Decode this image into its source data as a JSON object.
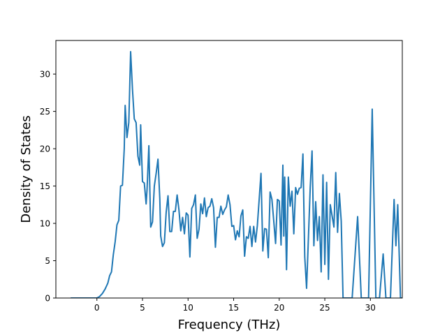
{
  "chart_data": {
    "type": "line",
    "xlabel": "Frequency (THz)",
    "ylabel": "Density of States",
    "xlim": [
      -4.5,
      33.5
    ],
    "ylim": [
      0,
      34.5
    ],
    "x_ticks": [
      0,
      5,
      10,
      15,
      20,
      25,
      30
    ],
    "y_ticks": [
      0,
      5,
      10,
      15,
      20,
      25,
      30
    ],
    "grid": false,
    "legend": "none",
    "series": [
      {
        "color": "#1f77b4",
        "points": [
          [
            -2.8,
            0
          ],
          [
            -1.0,
            0
          ],
          [
            0.0,
            0
          ],
          [
            0.3,
            0.2
          ],
          [
            0.6,
            0.6
          ],
          [
            0.9,
            1.2
          ],
          [
            1.2,
            2.0
          ],
          [
            1.4,
            3.0
          ],
          [
            1.6,
            3.5
          ],
          [
            1.8,
            5.8
          ],
          [
            2.0,
            7.5
          ],
          [
            2.2,
            9.8
          ],
          [
            2.4,
            10.4
          ],
          [
            2.6,
            15.0
          ],
          [
            2.8,
            15.1
          ],
          [
            3.0,
            20.0
          ],
          [
            3.1,
            25.8
          ],
          [
            3.3,
            21.5
          ],
          [
            3.5,
            23.5
          ],
          [
            3.7,
            33.0
          ],
          [
            3.9,
            28.0
          ],
          [
            4.1,
            24.0
          ],
          [
            4.3,
            23.5
          ],
          [
            4.5,
            19.0
          ],
          [
            4.7,
            17.8
          ],
          [
            4.8,
            23.2
          ],
          [
            5.0,
            15.6
          ],
          [
            5.2,
            15.4
          ],
          [
            5.4,
            12.6
          ],
          [
            5.5,
            14.5
          ],
          [
            5.7,
            20.4
          ],
          [
            5.9,
            9.5
          ],
          [
            6.1,
            10.2
          ],
          [
            6.3,
            15.0
          ],
          [
            6.5,
            16.7
          ],
          [
            6.7,
            18.6
          ],
          [
            6.9,
            13.3
          ],
          [
            7.0,
            8.3
          ],
          [
            7.2,
            6.9
          ],
          [
            7.4,
            7.4
          ],
          [
            7.6,
            11.5
          ],
          [
            7.8,
            13.7
          ],
          [
            8.0,
            8.9
          ],
          [
            8.2,
            8.9
          ],
          [
            8.4,
            11.6
          ],
          [
            8.6,
            11.6
          ],
          [
            8.8,
            13.8
          ],
          [
            9.0,
            11.8
          ],
          [
            9.2,
            9.0
          ],
          [
            9.4,
            10.8
          ],
          [
            9.6,
            8.6
          ],
          [
            9.8,
            11.4
          ],
          [
            10.0,
            11.1
          ],
          [
            10.2,
            5.5
          ],
          [
            10.4,
            12.0
          ],
          [
            10.6,
            12.5
          ],
          [
            10.8,
            13.8
          ],
          [
            11.0,
            8.0
          ],
          [
            11.2,
            9.2
          ],
          [
            11.4,
            12.6
          ],
          [
            11.6,
            11.3
          ],
          [
            11.8,
            13.4
          ],
          [
            12.0,
            10.9
          ],
          [
            12.2,
            12.1
          ],
          [
            12.4,
            12.3
          ],
          [
            12.6,
            13.3
          ],
          [
            12.8,
            12.1
          ],
          [
            13.0,
            6.8
          ],
          [
            13.2,
            10.8
          ],
          [
            13.4,
            10.8
          ],
          [
            13.6,
            12.3
          ],
          [
            13.8,
            11.2
          ],
          [
            14.0,
            11.8
          ],
          [
            14.2,
            12.2
          ],
          [
            14.4,
            13.8
          ],
          [
            14.6,
            12.5
          ],
          [
            14.8,
            9.6
          ],
          [
            15.0,
            9.7
          ],
          [
            15.2,
            7.8
          ],
          [
            15.4,
            9.0
          ],
          [
            15.6,
            8.2
          ],
          [
            15.8,
            11.0
          ],
          [
            16.0,
            11.8
          ],
          [
            16.2,
            5.6
          ],
          [
            16.4,
            8.2
          ],
          [
            16.6,
            8.0
          ],
          [
            16.8,
            9.6
          ],
          [
            17.0,
            6.9
          ],
          [
            17.2,
            9.6
          ],
          [
            17.4,
            7.5
          ],
          [
            17.6,
            9.7
          ],
          [
            17.8,
            13.2
          ],
          [
            18.0,
            16.7
          ],
          [
            18.2,
            6.3
          ],
          [
            18.4,
            9.3
          ],
          [
            18.6,
            9.2
          ],
          [
            18.8,
            5.4
          ],
          [
            19.0,
            14.2
          ],
          [
            19.2,
            13.2
          ],
          [
            19.4,
            10.3
          ],
          [
            19.6,
            7.3
          ],
          [
            19.8,
            13.2
          ],
          [
            20.0,
            13.0
          ],
          [
            20.2,
            7.1
          ],
          [
            20.4,
            17.8
          ],
          [
            20.5,
            8.3
          ],
          [
            20.6,
            16.2
          ],
          [
            20.8,
            3.8
          ],
          [
            21.0,
            16.2
          ],
          [
            21.2,
            12.3
          ],
          [
            21.4,
            14.3
          ],
          [
            21.6,
            8.6
          ],
          [
            21.8,
            14.8
          ],
          [
            22.0,
            13.9
          ],
          [
            22.2,
            14.7
          ],
          [
            22.4,
            14.8
          ],
          [
            22.6,
            19.3
          ],
          [
            22.8,
            5.5
          ],
          [
            23.0,
            1.3
          ],
          [
            23.2,
            8.0
          ],
          [
            23.4,
            14.8
          ],
          [
            23.6,
            19.7
          ],
          [
            23.8,
            7.0
          ],
          [
            24.0,
            12.9
          ],
          [
            24.2,
            7.7
          ],
          [
            24.4,
            10.9
          ],
          [
            24.6,
            3.5
          ],
          [
            24.8,
            16.5
          ],
          [
            25.0,
            4.5
          ],
          [
            25.2,
            15.5
          ],
          [
            25.4,
            2.5
          ],
          [
            25.6,
            12.5
          ],
          [
            25.8,
            11.0
          ],
          [
            26.0,
            9.5
          ],
          [
            26.2,
            16.8
          ],
          [
            26.4,
            8.8
          ],
          [
            26.6,
            14.0
          ],
          [
            26.8,
            10.3
          ],
          [
            27.0,
            0
          ],
          [
            28.0,
            0
          ],
          [
            28.6,
            10.9
          ],
          [
            29.0,
            0
          ],
          [
            29.8,
            0
          ],
          [
            30.2,
            25.3
          ],
          [
            30.6,
            0
          ],
          [
            31.0,
            0
          ],
          [
            31.4,
            5.9
          ],
          [
            31.7,
            0
          ],
          [
            32.2,
            0
          ],
          [
            32.6,
            13.2
          ],
          [
            32.8,
            7.0
          ],
          [
            33.0,
            12.5
          ],
          [
            33.3,
            0
          ],
          [
            34.0,
            0
          ],
          [
            34.8,
            0
          ],
          [
            36.0,
            0
          ]
        ]
      }
    ]
  }
}
